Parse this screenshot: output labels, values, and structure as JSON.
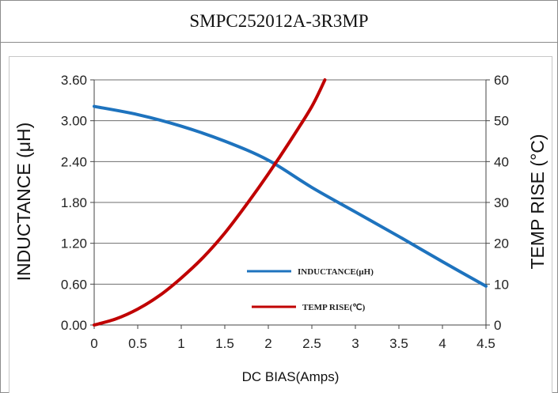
{
  "title": "SMPC252012A-3R3MP",
  "chart_data": {
    "type": "line",
    "xlabel": "DC BIAS(Amps)",
    "ylabel_left": "INDUCTANCE  (μH)",
    "ylabel_right": "TEMP RISE (°C)",
    "xlim": [
      0,
      4.5
    ],
    "ylim_left": [
      0,
      3.6
    ],
    "ylim_right": [
      0,
      60
    ],
    "x_ticks": [
      "0",
      "0.5",
      "1",
      "1.5",
      "2",
      "2.5",
      "3",
      "3.5",
      "4",
      "4.5"
    ],
    "y_left_ticks": [
      "0.00",
      "0.60",
      "1.20",
      "1.80",
      "2.40",
      "3.00",
      "3.60"
    ],
    "y_right_ticks": [
      "0",
      "10",
      "20",
      "30",
      "40",
      "50",
      "60"
    ],
    "grid": "horizontal",
    "legend_position": "center-right",
    "series": [
      {
        "name": "INDUCTANCE(μH)",
        "axis": "left",
        "color": "#1e73be",
        "x": [
          0,
          0.5,
          1,
          1.5,
          2,
          2.5,
          3,
          3.5,
          4,
          4.5
        ],
        "y": [
          3.21,
          3.09,
          2.92,
          2.7,
          2.42,
          2.02,
          1.66,
          1.3,
          0.93,
          0.57
        ]
      },
      {
        "name": "TEMP RISE(℃)",
        "axis": "right",
        "color": "#c00000",
        "x": [
          0,
          0.25,
          0.5,
          0.75,
          1.0,
          1.25,
          1.5,
          1.75,
          2.0,
          2.25,
          2.5,
          2.65
        ],
        "y": [
          0,
          1.5,
          3.9,
          7.2,
          11.5,
          16.5,
          22.5,
          29.5,
          37,
          45,
          53.5,
          60
        ]
      }
    ]
  }
}
